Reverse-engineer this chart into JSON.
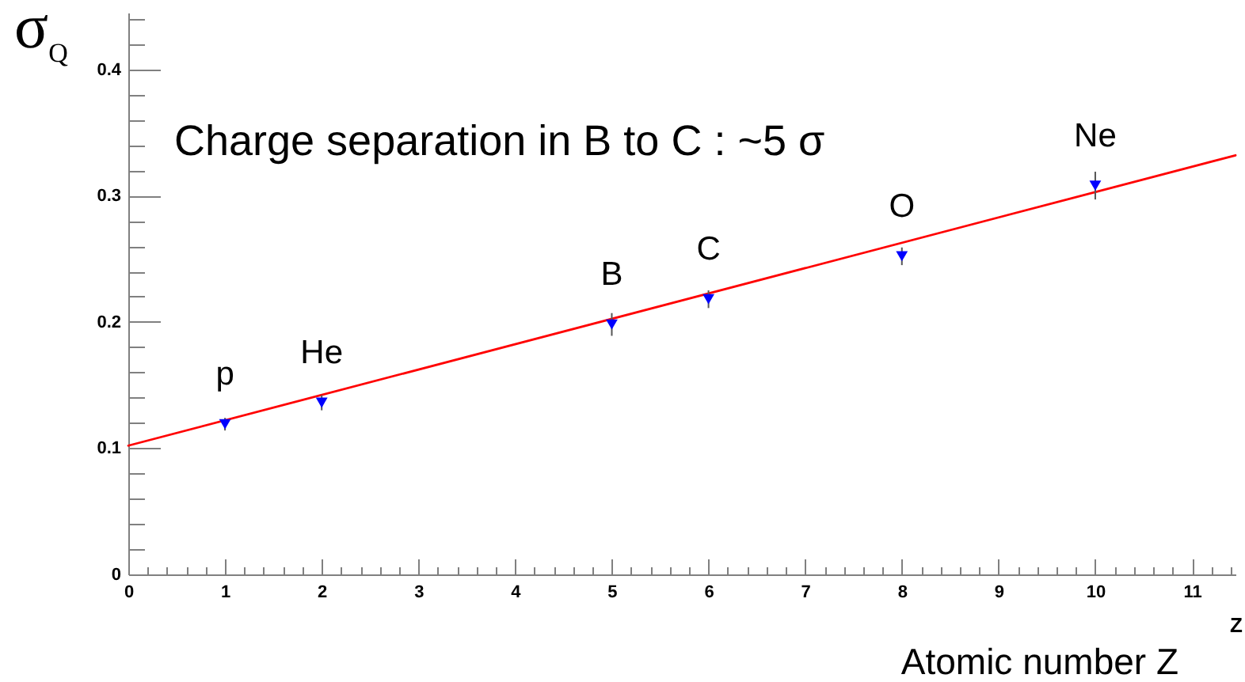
{
  "chart_data": {
    "type": "scatter",
    "ylabel": "σ$_{Q}$",
    "xlabel": "Z",
    "xlim": [
      0,
      11.45
    ],
    "xticks": [
      0,
      {
        "value": 0.2,
        "label": null
      },
      {
        "value": 0.4,
        "label": null
      },
      {
        "value": 0.6,
        "label": null
      },
      {
        "value": 0.8,
        "label": null
      },
      1,
      {
        "value": 1.2,
        "label": null
      },
      {
        "value": 1.4,
        "label": null
      },
      {
        "value": 1.6,
        "label": null
      },
      {
        "value": 1.8,
        "label": null
      },
      2,
      {
        "value": 2.2,
        "label": null
      },
      {
        "value": 2.4,
        "label": null
      },
      {
        "value": 2.6,
        "label": null
      },
      {
        "value": 2.8,
        "label": null
      },
      3,
      {
        "value": 3.2,
        "label": null
      },
      {
        "value": 3.4,
        "label": null
      },
      {
        "value": 3.6,
        "label": null
      },
      {
        "value": 3.8,
        "label": null
      },
      4,
      {
        "value": 4.2,
        "label": null
      },
      {
        "value": 4.4,
        "label": null
      },
      {
        "value": 4.6,
        "label": null
      },
      {
        "value": 4.8,
        "label": null
      },
      5,
      {
        "value": 5.2,
        "label": null
      },
      {
        "value": 5.4,
        "label": null
      },
      {
        "value": 5.6,
        "label": null
      },
      {
        "value": 5.8,
        "label": null
      },
      6,
      {
        "value": 6.2,
        "label": null
      },
      {
        "value": 6.4,
        "label": null
      },
      {
        "value": 6.6,
        "label": null
      },
      {
        "value": 6.8,
        "label": null
      },
      7,
      {
        "value": 7.2,
        "label": null
      },
      {
        "value": 7.4,
        "label": null
      },
      {
        "value": 7.6,
        "label": null
      },
      {
        "value": 7.8,
        "label": null
      },
      8,
      {
        "value": 8.2,
        "label": null
      },
      {
        "value": 8.4,
        "label": null
      },
      {
        "value": 8.6,
        "label": null
      },
      {
        "value": 8.8,
        "label": null
      },
      9,
      {
        "value": 9.2,
        "label": null
      },
      {
        "value": 9.4,
        "label": null
      },
      {
        "value": 9.6,
        "label": null
      },
      {
        "value": 9.8,
        "label": null
      },
      10,
      {
        "value": 10.2,
        "label": null
      },
      {
        "value": 10.4,
        "label": null
      },
      {
        "value": 10.6,
        "label": null
      },
      {
        "value": 10.8,
        "label": null
      },
      11,
      {
        "value": 11.2,
        "label": null
      },
      {
        "value": 11.4,
        "label": null
      }
    ],
    "ylim": [
      0,
      0.445
    ],
    "yticks": [
      0,
      {
        "value": 0.02,
        "label": null
      },
      {
        "value": 0.04,
        "label": null
      },
      {
        "value": 0.06,
        "label": null
      },
      {
        "value": 0.08,
        "label": null
      },
      0.1,
      {
        "value": 0.12,
        "label": null
      },
      {
        "value": 0.14,
        "label": null
      },
      {
        "value": 0.16,
        "label": null
      },
      {
        "value": 0.18,
        "label": null
      },
      0.2,
      {
        "value": 0.22,
        "label": null
      },
      {
        "value": 0.24,
        "label": null
      },
      {
        "value": 0.26,
        "label": null
      },
      {
        "value": 0.28,
        "label": null
      },
      0.3,
      {
        "value": 0.32,
        "label": null
      },
      {
        "value": 0.34,
        "label": null
      },
      {
        "value": 0.36,
        "label": null
      },
      {
        "value": 0.38,
        "label": null
      },
      0.4,
      {
        "value": 0.42,
        "label": null
      },
      {
        "value": 0.44,
        "label": null
      }
    ],
    "series": [
      {
        "type": "line",
        "color": "#ff0000",
        "x": [
          0,
          11.45
        ],
        "values": [
          0.102,
          0.332
        ]
      },
      {
        "color": "#0000ff",
        "marker": "triangle",
        "x": [
          1,
          2,
          5,
          6,
          8,
          10
        ],
        "values": [
          0.119,
          0.136,
          0.198,
          0.218,
          0.252,
          0.308
        ],
        "errors": [
          0.005,
          0.006,
          0.009,
          0.007,
          0.007,
          0.011
        ]
      }
    ],
    "annotations": [
      "Charge separation in B to C : ~5 σ",
      {
        "text": "p",
        "x": 1,
        "y": 0.119
      },
      {
        "text": "He",
        "x": 2,
        "y": 0.136
      },
      {
        "text": "B",
        "x": 5,
        "y": 0.198
      },
      {
        "text": "C",
        "x": 6,
        "y": 0.218
      },
      {
        "text": "O",
        "x": 8,
        "y": 0.252
      },
      {
        "text": "Ne",
        "x": 10,
        "y": 0.308
      },
      "Atomic number Z"
    ]
  }
}
